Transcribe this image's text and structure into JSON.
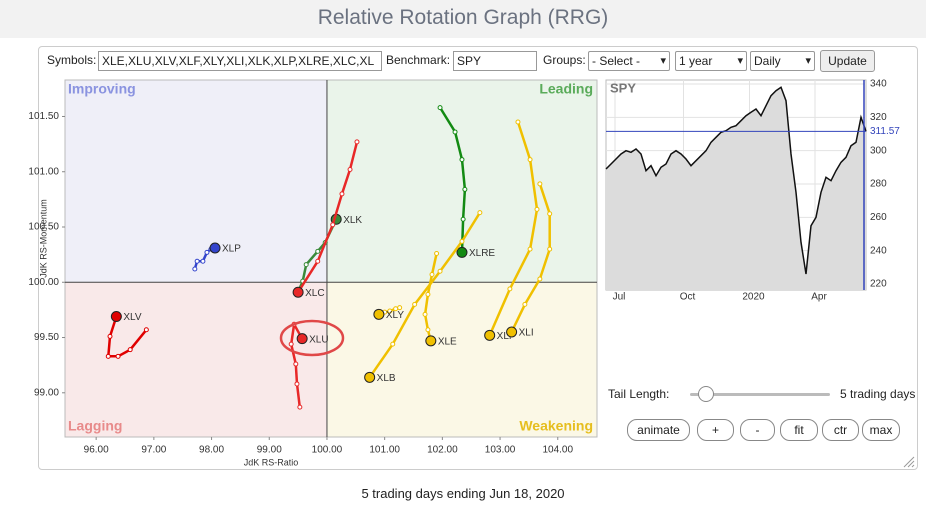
{
  "header": {
    "title": "Relative Rotation Graph (RRG)"
  },
  "toolbar": {
    "symbols_label": "Symbols:",
    "symbols": "XLE,XLU,XLV,XLF,XLY,XLI,XLK,XLP,XLRE,XLC,XL",
    "benchmark_label": "Benchmark:",
    "benchmark": "SPY",
    "groups_label": "Groups:",
    "groups": "- Select -",
    "period": "1 year",
    "frequency": "Daily",
    "update": "Update"
  },
  "chart_data": [
    {
      "type": "scatter",
      "x_label": "JdK RS-Ratio",
      "y_label": "JdK RS-Momentum",
      "xlim": [
        95.46,
        104.68
      ],
      "ylim": [
        98.6,
        101.83
      ],
      "xticks": [
        {
          "value": 96,
          "label": "96.00"
        },
        {
          "value": 97,
          "label": "97.00"
        },
        {
          "value": 98,
          "label": "98.00"
        },
        {
          "value": 99,
          "label": "99.00"
        },
        {
          "value": 100,
          "label": "100.00"
        },
        {
          "value": 101,
          "label": "101.00"
        },
        {
          "value": 102,
          "label": "102.00"
        },
        {
          "value": 103,
          "label": "103.00"
        },
        {
          "value": 104,
          "label": "104.00"
        }
      ],
      "yticks": [
        {
          "value": 99,
          "label": "99.00"
        },
        {
          "value": 99.5,
          "label": "99.50"
        },
        {
          "value": 100,
          "label": "100.00"
        },
        {
          "value": 100.5,
          "label": "100.50"
        },
        {
          "value": 101,
          "label": "101.00"
        },
        {
          "value": 101.5,
          "label": "101.50"
        }
      ],
      "quadrants": [
        {
          "label": "Improving",
          "color": "#8a93e0",
          "fill": "#efeff8"
        },
        {
          "label": "Leading",
          "color": "#5aab5a",
          "fill": "#eaf4ea"
        },
        {
          "label": "Lagging",
          "color": "#e88a8a",
          "fill": "#f9e9e9"
        },
        {
          "label": "Weakening",
          "color": "#e6be1e",
          "fill": "#fbf8e6"
        }
      ],
      "series": [
        {
          "name": "XLV",
          "color": "#e00000",
          "x": [
            96.87,
            96.59,
            96.38,
            96.21,
            96.24,
            96.35
          ],
          "values": [
            99.57,
            99.39,
            99.33,
            99.33,
            99.51,
            99.69
          ]
        },
        {
          "name": "XLP",
          "color": "#3344cc",
          "x": [
            97.71,
            97.75,
            97.85,
            97.92,
            97.99,
            98.06
          ],
          "values": [
            100.12,
            100.19,
            100.19,
            100.27,
            100.3,
            100.31
          ]
        },
        {
          "name": "XLK",
          "color": "#3a8a3a",
          "x": [
            99.48,
            99.58,
            99.64,
            99.84,
            99.97,
            100.16
          ],
          "values": [
            99.89,
            100.01,
            100.16,
            100.28,
            100.36,
            100.57
          ]
        },
        {
          "name": "XLC",
          "color": "#e82828",
          "x": [
            100.52,
            100.4,
            100.26,
            100.1,
            99.84,
            99.5
          ],
          "values": [
            101.27,
            101.02,
            100.8,
            100.52,
            100.19,
            99.91
          ]
        },
        {
          "name": "XLU",
          "color": "#e82828",
          "x": [
            99.53,
            99.48,
            99.46,
            99.38,
            99.43,
            99.57
          ],
          "values": [
            98.87,
            99.08,
            99.26,
            99.44,
            99.62,
            99.49
          ]
        },
        {
          "name": "XLRE",
          "color": "#138a13",
          "x": [
            101.96,
            102.22,
            102.34,
            102.39,
            102.36,
            102.34
          ],
          "values": [
            101.58,
            101.36,
            101.11,
            100.84,
            100.57,
            100.27
          ]
        },
        {
          "name": "XLE",
          "color": "#f0c000",
          "x": [
            101.9,
            101.82,
            101.75,
            101.7,
            101.75,
            101.8
          ],
          "values": [
            100.26,
            100.07,
            99.89,
            99.71,
            99.57,
            99.47
          ]
        },
        {
          "name": "XLY",
          "color": "#f0c000",
          "x": [
            101.26,
            101.19,
            101.09,
            101.0,
            100.95,
            100.9
          ],
          "values": [
            99.77,
            99.76,
            99.74,
            99.73,
            99.71,
            99.71
          ]
        },
        {
          "name": "XLB",
          "color": "#f0c000",
          "x": [
            102.65,
            102.34,
            101.96,
            101.52,
            101.14,
            100.74
          ],
          "values": [
            100.63,
            100.37,
            100.1,
            99.8,
            99.44,
            99.14
          ]
        },
        {
          "name": "XLF",
          "color": "#f0c000",
          "x": [
            103.31,
            103.52,
            103.64,
            103.52,
            103.17,
            102.82
          ],
          "values": [
            101.45,
            101.11,
            100.66,
            100.3,
            99.94,
            99.52
          ]
        },
        {
          "name": "XLI",
          "color": "#f0c000",
          "x": [
            103.69,
            103.86,
            103.86,
            103.69,
            103.43,
            103.2
          ],
          "values": [
            100.89,
            100.62,
            100.3,
            100.03,
            99.8,
            99.55
          ]
        }
      ]
    },
    {
      "type": "line",
      "title": "SPY",
      "color": "#111111",
      "area_color": "#dcdcdc",
      "last_color": "#3344bb",
      "xlim": [
        0,
        52
      ],
      "xticks": [
        {
          "value": 1.8,
          "label": "Jul"
        },
        {
          "value": 15.5,
          "label": "Oct"
        },
        {
          "value": 28.7,
          "label": "2020"
        },
        {
          "value": 41.8,
          "label": "Apr"
        }
      ],
      "ylim": [
        216.4,
        342.4
      ],
      "yticks": [
        220,
        240,
        260,
        280,
        300,
        320,
        340
      ],
      "values": [
        289,
        292,
        295,
        298,
        300,
        299,
        301,
        298,
        288,
        291,
        285,
        290,
        292,
        298,
        300,
        298,
        295,
        291,
        294,
        297,
        300,
        305,
        308,
        311,
        312,
        314,
        315,
        318,
        321,
        323,
        325,
        321,
        327,
        333,
        336,
        338,
        330,
        298,
        275,
        245,
        226,
        255,
        260,
        275,
        284,
        282,
        288,
        293,
        296,
        303,
        305,
        320,
        311.57
      ]
    }
  ],
  "controls": {
    "tail_label": "Tail Length:",
    "tail_value": "5 trading days",
    "buttons": [
      "animate",
      "+",
      "-",
      "fit",
      "ctr",
      "max"
    ]
  },
  "footer": "5 trading days ending Jun 18, 2020"
}
